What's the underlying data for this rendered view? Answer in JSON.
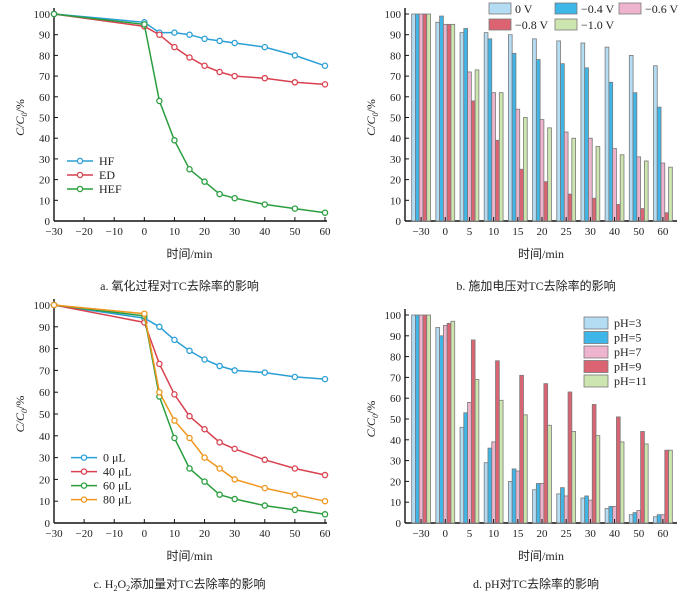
{
  "chart_data": [
    {
      "id": "a",
      "type": "line",
      "caption": "a. 氧化过程对TC去除率的影响",
      "xlabel": "时间/min",
      "ylabel": "C/C0/%",
      "xlim": [
        -30,
        60
      ],
      "ylim": [
        0,
        100
      ],
      "xticks": [
        -30,
        -20,
        -10,
        0,
        10,
        20,
        30,
        40,
        50,
        60
      ],
      "yticks": [
        0,
        10,
        20,
        30,
        40,
        50,
        60,
        70,
        80,
        90,
        100
      ],
      "legend_position": "center-left",
      "x": [
        -30,
        0,
        5,
        10,
        15,
        20,
        25,
        30,
        40,
        50,
        60
      ],
      "series": [
        {
          "name": "HF",
          "color": "#2a9fd6",
          "values": [
            100,
            96,
            91,
            91,
            90,
            88,
            87,
            86,
            84,
            80,
            75
          ]
        },
        {
          "name": "ED",
          "color": "#d9414f",
          "values": [
            100,
            94,
            90,
            84,
            79,
            75,
            72,
            70,
            69,
            67,
            66
          ]
        },
        {
          "name": "HEF",
          "color": "#2a9e3f",
          "values": [
            100,
            95,
            58,
            39,
            25,
            19,
            13,
            11,
            8,
            6,
            4
          ]
        }
      ]
    },
    {
      "id": "b",
      "type": "bar",
      "caption": "b. 施加电压对TC去除率的影响",
      "xlabel": "时间/min",
      "ylabel": "C/C0/%",
      "ylim": [
        0,
        100
      ],
      "yticks": [
        0,
        10,
        20,
        30,
        40,
        50,
        60,
        70,
        80,
        90,
        100
      ],
      "legend_position": "top-right",
      "categories": [
        "-30",
        "0",
        "5",
        "10",
        "15",
        "20",
        "25",
        "30",
        "40",
        "50",
        "60"
      ],
      "series": [
        {
          "name": "0 V",
          "color": "#b4dcf2",
          "values": [
            100,
            96,
            91,
            91,
            90,
            88,
            87,
            86,
            84,
            80,
            75
          ]
        },
        {
          "name": "-0.4 V",
          "color": "#3fb6e8",
          "values": [
            100,
            99,
            93,
            88,
            81,
            78,
            76,
            74,
            67,
            62,
            55
          ]
        },
        {
          "name": "-0.6 V",
          "color": "#eeb3cd",
          "values": [
            100,
            95,
            72,
            62,
            54,
            49,
            43,
            40,
            35,
            31,
            28
          ]
        },
        {
          "name": "-0.8 V",
          "color": "#dc6472",
          "values": [
            100,
            95,
            58,
            39,
            25,
            19,
            13,
            11,
            8,
            6,
            4
          ]
        },
        {
          "name": "-1.0 V",
          "color": "#cde5ae",
          "values": [
            100,
            95,
            73,
            62,
            50,
            45,
            40,
            36,
            32,
            29,
            26
          ]
        }
      ]
    },
    {
      "id": "c",
      "type": "line",
      "caption_prefix": "c. H",
      "caption_sub1": "2",
      "caption_mid": "O",
      "caption_sub2": "2",
      "caption_suffix": "添加量对TC去除率的影响",
      "xlabel": "时间/min",
      "ylabel": "C/C0/%",
      "xlim": [
        -30,
        60
      ],
      "ylim": [
        0,
        100
      ],
      "xticks": [
        -30,
        -20,
        -10,
        0,
        10,
        20,
        30,
        40,
        50,
        60
      ],
      "yticks": [
        0,
        10,
        20,
        30,
        40,
        50,
        60,
        70,
        80,
        90,
        100
      ],
      "legend_position": "bottom-left",
      "x": [
        -30,
        0,
        5,
        10,
        15,
        20,
        25,
        30,
        40,
        50,
        60
      ],
      "series": [
        {
          "name": "0 μL",
          "color": "#2a9fd6",
          "values": [
            100,
            94,
            90,
            84,
            79,
            75,
            72,
            70,
            69,
            67,
            66
          ]
        },
        {
          "name": "40 μL",
          "color": "#d9414f",
          "values": [
            100,
            92,
            73,
            59,
            49,
            43,
            37,
            34,
            29,
            25,
            22
          ]
        },
        {
          "name": "60 μL",
          "color": "#2a9e3f",
          "values": [
            100,
            95,
            58,
            39,
            25,
            19,
            13,
            11,
            8,
            6,
            4
          ]
        },
        {
          "name": "80 μL",
          "color": "#f0961e",
          "values": [
            100,
            96,
            60,
            47,
            39,
            30,
            25,
            20,
            16,
            13,
            10
          ]
        }
      ]
    },
    {
      "id": "d",
      "type": "bar",
      "caption": "d. pH对TC去除率的影响",
      "xlabel": "时间/min",
      "ylabel": "C/C0/%",
      "ylim": [
        0,
        100
      ],
      "yticks": [
        0,
        10,
        20,
        30,
        40,
        50,
        60,
        70,
        80,
        90,
        100
      ],
      "legend_position": "top-right",
      "categories": [
        "-30",
        "0",
        "5",
        "10",
        "15",
        "20",
        "25",
        "30",
        "40",
        "50",
        "60"
      ],
      "series": [
        {
          "name": "pH=3",
          "color": "#b4dcf2",
          "values": [
            100,
            94,
            46,
            29,
            20,
            16,
            14,
            12,
            7,
            4,
            3
          ]
        },
        {
          "name": "pH=5",
          "color": "#3fb6e8",
          "values": [
            100,
            90,
            53,
            36,
            26,
            19,
            17,
            13,
            8,
            5,
            4
          ]
        },
        {
          "name": "pH=7",
          "color": "#eeb3cd",
          "values": [
            100,
            95,
            58,
            39,
            25,
            19,
            13,
            11,
            8,
            6,
            4
          ]
        },
        {
          "name": "pH=9",
          "color": "#dc6472",
          "values": [
            100,
            96,
            88,
            78,
            71,
            67,
            63,
            57,
            51,
            44,
            35
          ]
        },
        {
          "name": "pH=11",
          "color": "#cde5ae",
          "values": [
            100,
            97,
            69,
            59,
            52,
            47,
            44,
            42,
            39,
            38,
            35
          ]
        }
      ]
    }
  ]
}
